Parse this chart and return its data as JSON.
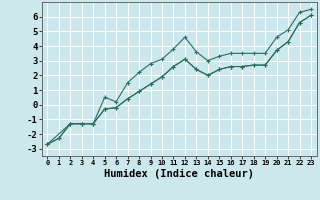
{
  "xlabel": "Humidex (Indice chaleur)",
  "bg_color": "#cce8ec",
  "grid_color": "#ffffff",
  "line_color": "#2d6e63",
  "xlim": [
    -0.5,
    23.5
  ],
  "ylim": [
    -3.5,
    7.0
  ],
  "xticks": [
    0,
    1,
    2,
    3,
    4,
    5,
    6,
    7,
    8,
    9,
    10,
    11,
    12,
    13,
    14,
    15,
    16,
    17,
    18,
    19,
    20,
    21,
    22,
    23
  ],
  "yticks": [
    -3,
    -2,
    -1,
    0,
    1,
    2,
    3,
    4,
    5,
    6
  ],
  "series1_x": [
    0,
    1,
    2,
    3,
    4,
    5,
    6,
    7,
    8,
    9,
    10,
    11,
    12,
    13,
    14,
    15,
    16,
    17,
    18,
    19,
    20,
    21,
    22,
    23
  ],
  "series1_y": [
    -2.7,
    -2.3,
    -1.3,
    -1.3,
    -1.3,
    0.5,
    0.2,
    1.5,
    2.2,
    2.8,
    3.1,
    3.8,
    4.6,
    3.6,
    3.0,
    3.3,
    3.5,
    3.5,
    3.5,
    3.5,
    4.6,
    5.1,
    6.3,
    6.5
  ],
  "series2_x": [
    0,
    1,
    2,
    3,
    4,
    5,
    6,
    7,
    8,
    9,
    10,
    11,
    12,
    13,
    14,
    15,
    16,
    17,
    18,
    19,
    20,
    21,
    22,
    23
  ],
  "series2_y": [
    -2.7,
    -2.3,
    -1.3,
    -1.3,
    -1.3,
    -0.3,
    -0.2,
    0.4,
    0.9,
    1.4,
    1.9,
    2.6,
    3.1,
    2.4,
    2.0,
    2.4,
    2.6,
    2.6,
    2.7,
    2.7,
    3.7,
    4.3,
    5.6,
    6.1
  ],
  "series3_x": [
    0,
    2,
    3,
    4,
    5,
    6,
    7,
    8,
    9,
    10,
    11,
    12,
    13,
    14,
    15,
    16,
    17,
    18,
    19,
    20,
    21,
    22,
    23
  ],
  "series3_y": [
    -2.7,
    -1.3,
    -1.3,
    -1.3,
    -0.3,
    -0.2,
    0.4,
    0.9,
    1.4,
    1.9,
    2.6,
    3.1,
    2.4,
    2.0,
    2.4,
    2.6,
    2.6,
    2.7,
    2.7,
    3.7,
    4.3,
    5.6,
    6.1
  ],
  "markersize": 2.5
}
